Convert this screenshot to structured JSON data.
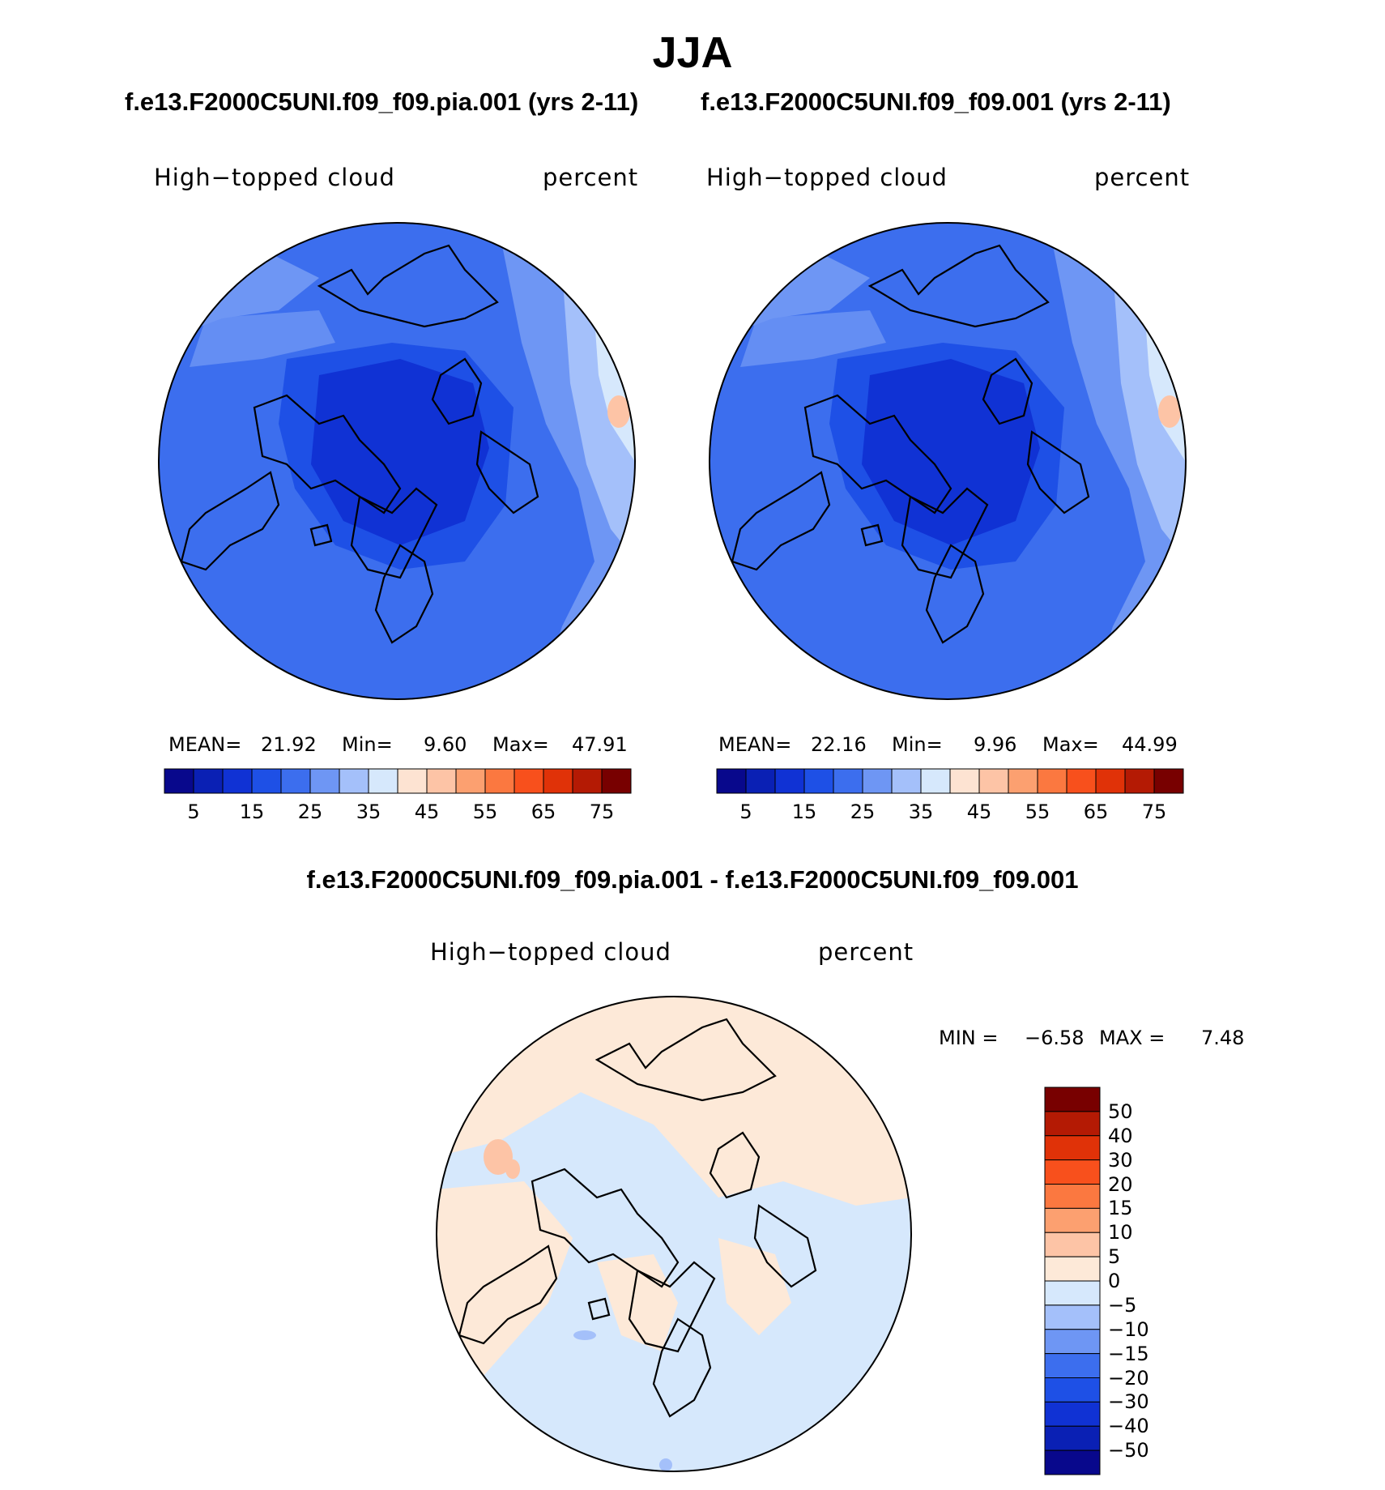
{
  "page_title": "JJA",
  "panels": [
    {
      "case_title": "f.e13.F2000C5UNI.f09_f09.pia.001 (yrs 2-11)",
      "variable_label": "High−topped cloud",
      "units_label": "percent",
      "stats": {
        "mean_label": "MEAN=",
        "mean": "21.92",
        "min_label": "Min=",
        "min": "9.60",
        "max_label": "Max=",
        "max": "47.91"
      }
    },
    {
      "case_title": "f.e13.F2000C5UNI.f09_f09.001 (yrs 2-11)",
      "variable_label": "High−topped cloud",
      "units_label": "percent",
      "stats": {
        "mean_label": "MEAN=",
        "mean": "22.16",
        "min_label": "Min=",
        "min": "9.96",
        "max_label": "Max=",
        "max": "44.99"
      }
    },
    {
      "case_title": "f.e13.F2000C5UNI.f09_f09.pia.001 - f.e13.F2000C5UNI.f09_f09.001",
      "variable_label": "High−topped cloud",
      "units_label": "percent",
      "stats": {
        "min_label": "MIN =",
        "min": "−6.58",
        "max_label": "MAX =",
        "max": "7.48"
      }
    }
  ],
  "colorbar_abs": {
    "tick_labels": [
      "5",
      "15",
      "25",
      "35",
      "45",
      "55",
      "65",
      "75"
    ],
    "colors": [
      "#08088c",
      "#0a20b4",
      "#1032d4",
      "#1e50e6",
      "#3c6eee",
      "#6e96f4",
      "#a4c0fa",
      "#d6e8fc",
      "#fde3d2",
      "#fdc4a6",
      "#fca070",
      "#fb7840",
      "#f8501c",
      "#e03208",
      "#b41a04",
      "#780000"
    ]
  },
  "colorbar_diff": {
    "tick_labels": [
      "50",
      "40",
      "30",
      "20",
      "15",
      "10",
      "5",
      "0",
      "−5",
      "−10",
      "−15",
      "−20",
      "−30",
      "−40",
      "−50"
    ],
    "colors": [
      "#780000",
      "#b41a04",
      "#e03208",
      "#f8501c",
      "#fb7840",
      "#fca070",
      "#fdc4a6",
      "#fde9d8",
      "#d6e8fc",
      "#a4c0fa",
      "#6e96f4",
      "#3c6eee",
      "#1e50e6",
      "#1032d4",
      "#0a20b4",
      "#08088c"
    ]
  },
  "map_colors": {
    "abs_background": "#3c6eee",
    "abs_pole": "#1032d4",
    "abs_ring": "#1e50e6",
    "abs_light": "#6e96f4",
    "abs_lighter": "#a4c0fa",
    "abs_pale": "#d6e8fc",
    "abs_warm": "#fdc4a6",
    "diff_neutral_blue": "#d6e8fc",
    "diff_neutral_orange": "#fde9d8",
    "diff_light_orange": "#fdc4a6",
    "diff_light_blue": "#a4c0fa"
  }
}
